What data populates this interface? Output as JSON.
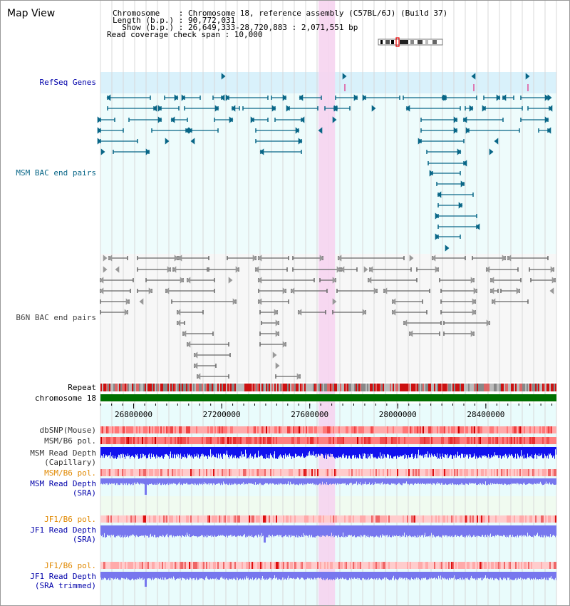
{
  "header": {
    "app_title": "Map View",
    "lines": [
      "Chromosome    : Chromosome 18, reference assembly (C57BL/6J) (Build 37)",
      "Length (b.p.) : 90,772,031",
      "  Show (b.p.) : 26,649,333-28,720,883 : 2,071,551 bp",
      "Read coverage check span : 10,000"
    ]
  },
  "tracks": {
    "refseq": "RefSeq Genes",
    "msm_bac": "MSM BAC end pairs",
    "b6n_bac": "B6N BAC end pairs",
    "repeat": "Repeat",
    "chromosome": "chromosome 18",
    "dbsnp": "dbSNP(Mouse)",
    "msm_b6_pol_1": "MSM/B6 pol.",
    "msm_depth_cap_1": "MSM Read Depth",
    "msm_depth_cap_2": "(Capillary)",
    "msm_b6_pol_2": "MSM/B6 pol.",
    "msm_depth_sra_1": "MSM Read Depth",
    "msm_depth_sra_2": "(SRA)",
    "jf1_b6_pol_1": "JF1/B6 pol.",
    "jf1_depth_sra_1": "JF1 Read Depth",
    "jf1_depth_sra_2": "(SRA)",
    "jf1_b6_pol_2": "JF1/B6 pol.",
    "jf1_depth_trim_1": "JF1 Read Depth",
    "jf1_depth_trim_2": "(SRA trimmed)"
  },
  "axis": {
    "start": 26649333,
    "end": 28720883,
    "ticks": [
      26800000,
      27200000,
      27600000,
      28000000,
      28400000
    ],
    "tick_labels": [
      "26800000",
      "27200000",
      "27600000",
      "28000000",
      "28400000"
    ]
  },
  "highlight": {
    "start": 27640000,
    "end": 27715000
  },
  "colors": {
    "refseq_bg": "#d9f1fb",
    "msm_bg": "#eefcfc",
    "b6n_bg": "#f7f7f7",
    "lower_bg": "#e9fcfc",
    "highlight": "#f6d4ef",
    "msm_color": "#086687",
    "b6n_color": "#666666",
    "label_blue": "#0000aa",
    "label_orange": "#e08800",
    "chrom_green": "#007000",
    "depth_blue": "#1111ee",
    "depth_light": "#7777ee"
  }
}
